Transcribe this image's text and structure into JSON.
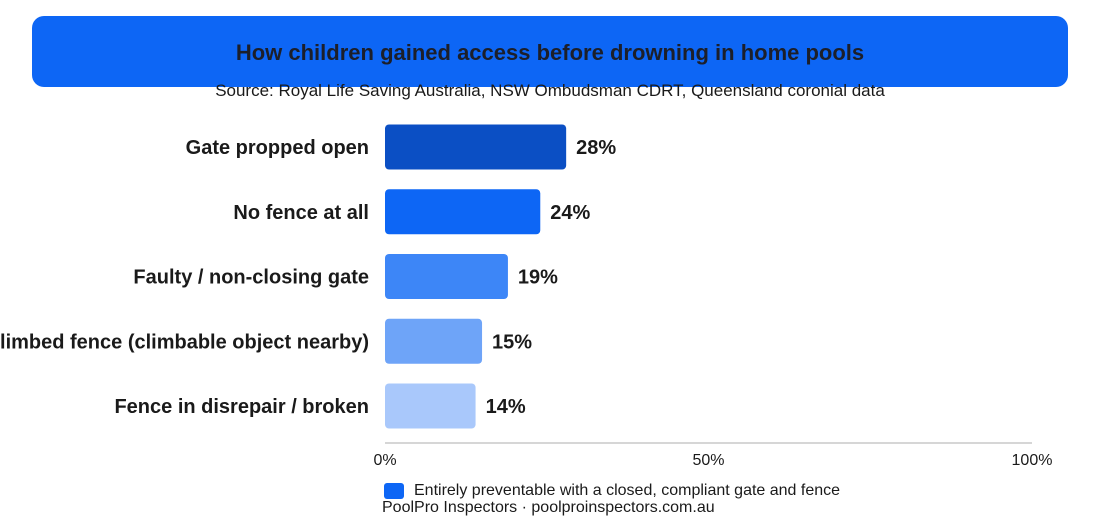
{
  "chart_data": {
    "type": "bar",
    "orientation": "horizontal",
    "title": "How children gained access before drowning in home pools",
    "subtitle": "Source: Royal Life Saving Australia, NSW Ombudsman CDRT, Queensland coronial data",
    "categories": [
      "Gate propped open",
      "No fence at all",
      "Faulty / non-closing gate",
      "Climbed fence (climbable object nearby)",
      "Fence in disrepair / broken"
    ],
    "values": [
      28,
      24,
      19,
      15,
      14
    ],
    "value_labels": [
      "28%",
      "24%",
      "19%",
      "15%",
      "14%"
    ],
    "bar_colors": [
      "#0b4fc4",
      "#0d66f5",
      "#3d86f7",
      "#6ea4f8",
      "#a9c8fb"
    ],
    "xlim": [
      0,
      100
    ],
    "x_ticks": [
      0,
      50,
      100
    ],
    "x_tick_labels": [
      "0%",
      "50%",
      "100%"
    ],
    "xlabel": "",
    "ylabel": "",
    "grid": false,
    "legend": {
      "placement": "bottom",
      "entries": [
        {
          "label": "Entirely preventable with a closed, compliant gate and fence",
          "color": "#0d66f5"
        }
      ]
    }
  },
  "footer": "PoolPro Inspectors · poolproinspectors.com.au",
  "colors": {
    "title_banner": "#0d66f5",
    "axis_line": "#c8c8c8"
  }
}
